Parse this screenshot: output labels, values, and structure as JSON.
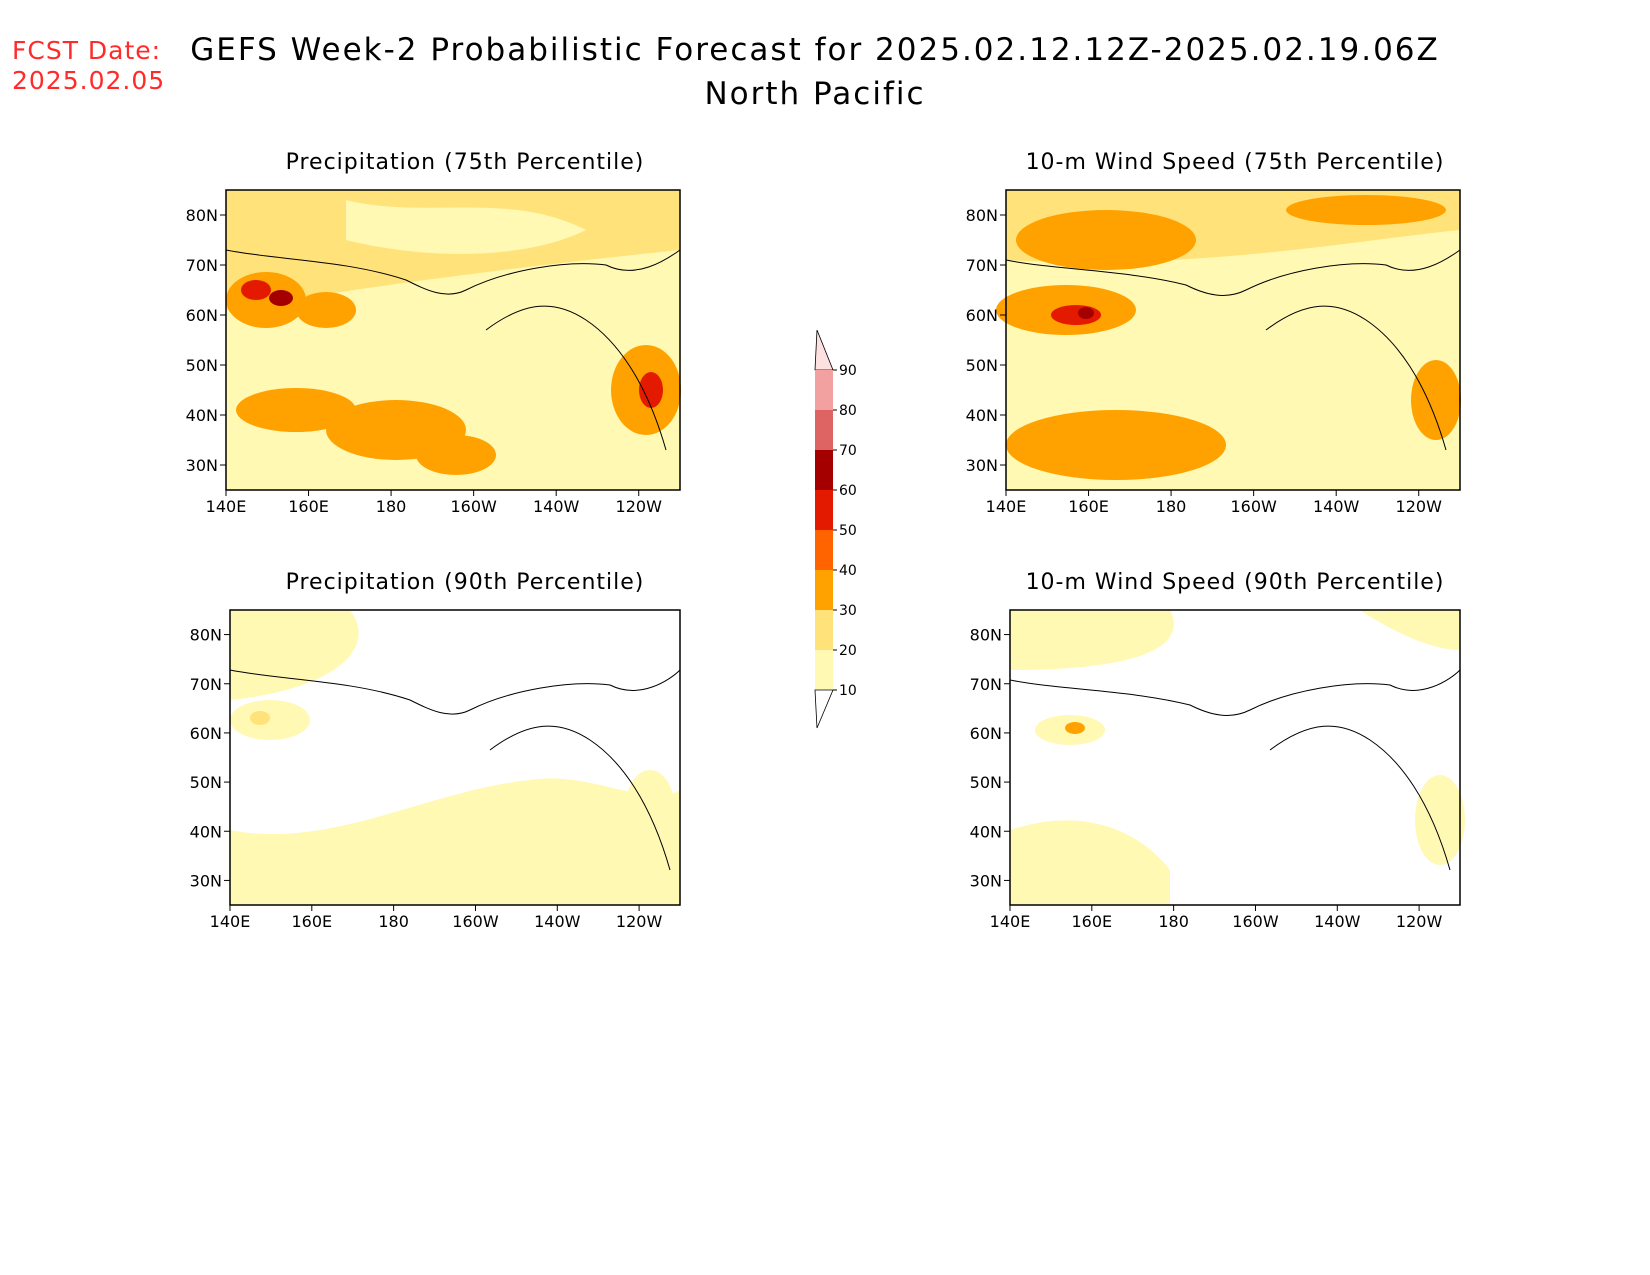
{
  "header": {
    "fcst_label": "FCST Date:",
    "fcst_date": "2025.02.05",
    "title": "GEFS Week-2 Probabilistic Forecast for 2025.02.12.12Z-2025.02.19.06Z",
    "subtitle": "North Pacific"
  },
  "axes": {
    "lon_ticks": [
      "140E",
      "160E",
      "180",
      "160W",
      "140W",
      "120W"
    ],
    "lat_ticks": [
      "80N",
      "70N",
      "60N",
      "50N",
      "40N",
      "30N"
    ]
  },
  "panels": [
    {
      "id": "precip75",
      "title": "Precipitation (75th Percentile)"
    },
    {
      "id": "wind75",
      "title": "10-m Wind Speed (75th Percentile)"
    },
    {
      "id": "precip90",
      "title": "Precipitation (90th Percentile)"
    },
    {
      "id": "wind90",
      "title": "10-m Wind Speed (90th Percentile)"
    }
  ],
  "legend": {
    "levels": [
      "10",
      "20",
      "30",
      "40",
      "50",
      "60",
      "70",
      "80",
      "90"
    ],
    "colors": [
      "#fff9b4",
      "#ffe27a",
      "#ffa200",
      "#ff6400",
      "#e31a00",
      "#a50000",
      "#de6464",
      "#f3a0a0",
      "#fde0e0"
    ]
  }
}
